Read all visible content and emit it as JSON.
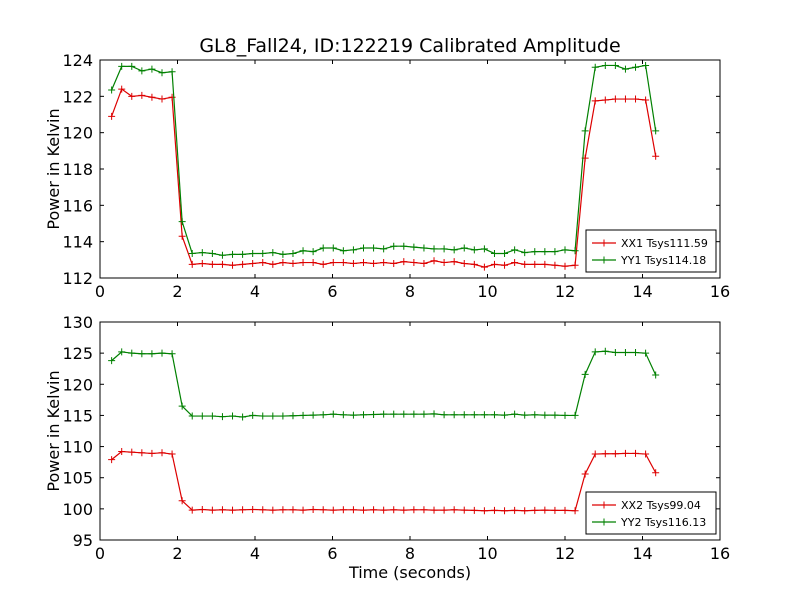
{
  "figure": {
    "title": "GL8_Fall24, ID:122219 Calibrated Amplitude",
    "xlabel": "Time (seconds)"
  },
  "chart_data": [
    {
      "type": "line",
      "title": "GL8_Fall24, ID:122219 Calibrated Amplitude",
      "xlabel": "",
      "ylabel": "Power in Kelvin",
      "xlim": [
        0,
        16
      ],
      "ylim": [
        112,
        124
      ],
      "xticks": [
        "0",
        "2",
        "4",
        "6",
        "8",
        "10",
        "12",
        "14",
        "16"
      ],
      "yticks": [
        "112",
        "114",
        "116",
        "118",
        "120",
        "122",
        "124"
      ],
      "xtick_values": [
        0,
        2,
        4,
        6,
        8,
        10,
        12,
        14,
        16
      ],
      "ytick_values": [
        112,
        114,
        116,
        118,
        120,
        122,
        124
      ],
      "grid": false,
      "legend_position": "lower-right",
      "x": [
        0.3,
        0.56,
        0.82,
        1.08,
        1.34,
        1.6,
        1.86,
        2.12,
        2.38,
        2.64,
        2.9,
        3.16,
        3.42,
        3.68,
        3.94,
        4.2,
        4.46,
        4.72,
        4.98,
        5.24,
        5.5,
        5.76,
        6.02,
        6.28,
        6.54,
        6.8,
        7.06,
        7.32,
        7.58,
        7.84,
        8.1,
        8.36,
        8.62,
        8.88,
        9.14,
        9.4,
        9.66,
        9.92,
        10.18,
        10.44,
        10.7,
        10.96,
        11.22,
        11.48,
        11.74,
        12.0,
        12.26,
        12.52,
        12.78,
        13.04,
        13.3,
        13.56,
        13.82,
        14.08,
        14.34
      ],
      "series": [
        {
          "name": "XX1 Tsys111.59",
          "color": "#dd0000",
          "values": [
            120.9,
            122.4,
            122.0,
            122.05,
            121.95,
            121.85,
            121.95,
            114.3,
            112.75,
            112.8,
            112.75,
            112.75,
            112.7,
            112.75,
            112.8,
            112.85,
            112.75,
            112.85,
            112.8,
            112.85,
            112.85,
            112.75,
            112.85,
            112.85,
            112.8,
            112.85,
            112.8,
            112.85,
            112.8,
            112.9,
            112.85,
            112.8,
            112.95,
            112.85,
            112.9,
            112.8,
            112.75,
            112.6,
            112.75,
            112.7,
            112.85,
            112.75,
            112.75,
            112.75,
            112.7,
            112.65,
            112.7,
            118.6,
            121.75,
            121.8,
            121.85,
            121.85,
            121.85,
            121.8,
            118.7
          ]
        },
        {
          "name": "YY1 Tsys114.18",
          "color": "#008000",
          "values": [
            122.35,
            123.65,
            123.65,
            123.4,
            123.5,
            123.3,
            123.35,
            115.1,
            113.35,
            113.4,
            113.35,
            113.25,
            113.3,
            113.3,
            113.35,
            113.35,
            113.4,
            113.3,
            113.35,
            113.5,
            113.45,
            113.65,
            113.65,
            113.5,
            113.55,
            113.65,
            113.65,
            113.6,
            113.75,
            113.75,
            113.7,
            113.65,
            113.6,
            113.6,
            113.55,
            113.65,
            113.55,
            113.6,
            113.35,
            113.35,
            113.55,
            113.4,
            113.45,
            113.45,
            113.45,
            113.55,
            113.5,
            120.1,
            123.6,
            123.7,
            123.7,
            123.5,
            123.6,
            123.7,
            120.1
          ]
        }
      ]
    },
    {
      "type": "line",
      "title": "",
      "xlabel": "Time (seconds)",
      "ylabel": "Power in Kelvin",
      "xlim": [
        0,
        16
      ],
      "ylim": [
        95,
        130
      ],
      "xticks": [
        "0",
        "2",
        "4",
        "6",
        "8",
        "10",
        "12",
        "14",
        "16"
      ],
      "yticks": [
        "95",
        "100",
        "105",
        "110",
        "115",
        "120",
        "125",
        "130"
      ],
      "xtick_values": [
        0,
        2,
        4,
        6,
        8,
        10,
        12,
        14,
        16
      ],
      "ytick_values": [
        95,
        100,
        105,
        110,
        115,
        120,
        125,
        130
      ],
      "grid": false,
      "legend_position": "lower-right",
      "x": [
        0.3,
        0.56,
        0.82,
        1.08,
        1.34,
        1.6,
        1.86,
        2.12,
        2.38,
        2.64,
        2.9,
        3.16,
        3.42,
        3.68,
        3.94,
        4.2,
        4.46,
        4.72,
        4.98,
        5.24,
        5.5,
        5.76,
        6.02,
        6.28,
        6.54,
        6.8,
        7.06,
        7.32,
        7.58,
        7.84,
        8.1,
        8.36,
        8.62,
        8.88,
        9.14,
        9.4,
        9.66,
        9.92,
        10.18,
        10.44,
        10.7,
        10.96,
        11.22,
        11.48,
        11.74,
        12.0,
        12.26,
        12.52,
        12.78,
        13.04,
        13.3,
        13.56,
        13.82,
        14.08,
        14.34
      ],
      "series": [
        {
          "name": "XX2 Tsys99.04",
          "color": "#dd0000",
          "values": [
            107.9,
            109.2,
            109.1,
            109.0,
            108.9,
            109.0,
            108.8,
            101.3,
            99.8,
            99.9,
            99.8,
            99.85,
            99.8,
            99.85,
            99.9,
            99.85,
            99.8,
            99.85,
            99.85,
            99.8,
            99.9,
            99.85,
            99.8,
            99.85,
            99.85,
            99.8,
            99.85,
            99.8,
            99.85,
            99.8,
            99.85,
            99.85,
            99.8,
            99.8,
            99.85,
            99.8,
            99.75,
            99.7,
            99.75,
            99.7,
            99.75,
            99.7,
            99.75,
            99.8,
            99.75,
            99.75,
            99.7,
            105.6,
            108.8,
            108.85,
            108.85,
            108.9,
            108.9,
            108.8,
            105.8
          ]
        },
        {
          "name": "YY2 Tsys116.13",
          "color": "#008000",
          "values": [
            123.8,
            125.2,
            125.0,
            124.9,
            124.9,
            125.0,
            124.9,
            116.5,
            114.9,
            114.9,
            114.9,
            114.8,
            114.9,
            114.75,
            115.0,
            114.9,
            114.9,
            114.9,
            114.95,
            115.0,
            115.05,
            115.1,
            115.2,
            115.1,
            115.05,
            115.1,
            115.15,
            115.2,
            115.2,
            115.2,
            115.2,
            115.2,
            115.25,
            115.1,
            115.1,
            115.1,
            115.1,
            115.1,
            115.1,
            115.05,
            115.2,
            115.05,
            115.1,
            115.05,
            115.05,
            115.0,
            115.0,
            121.6,
            125.2,
            125.3,
            125.1,
            125.1,
            125.1,
            125.0,
            121.5
          ]
        }
      ]
    }
  ]
}
